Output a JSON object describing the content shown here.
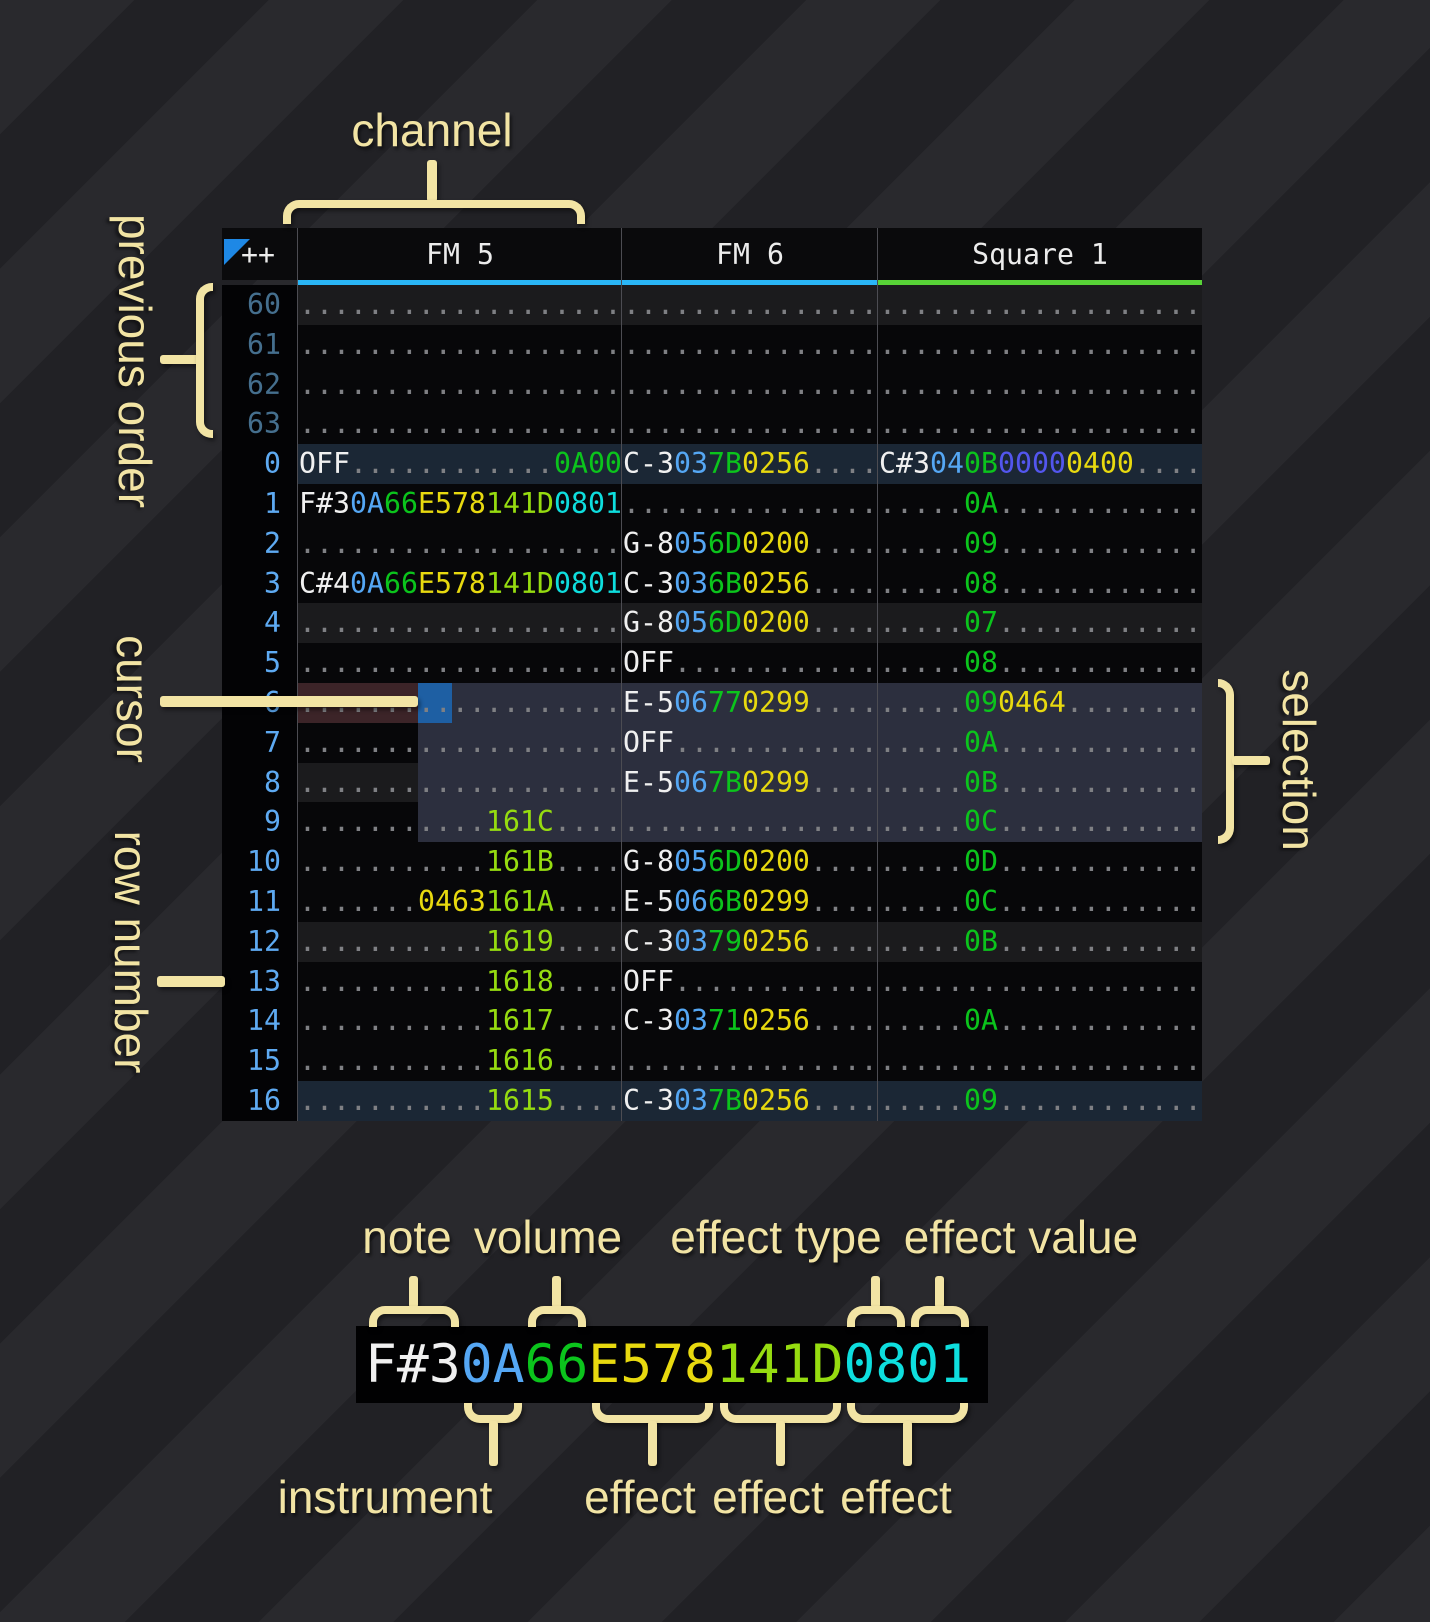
{
  "header": {
    "corner": "++",
    "channels": [
      {
        "name": "FM 5",
        "underline_color": "#2ab6f6"
      },
      {
        "name": "FM 6",
        "underline_color": "#2ab6f6"
      },
      {
        "name": "Square 1",
        "underline_color": "#58d337"
      }
    ]
  },
  "palette": {
    "nt": "#f0f0f0",
    "in": "#55a7f4",
    "vl": "#0bc41c",
    "fy": "#e8d90f",
    "f2": "#96dc10",
    "fc": "#0edede",
    "fg": "#0bc41c",
    "fi": "#5356ee",
    "dt": "#7f8084",
    "accent_cursor": "#1e5fa3",
    "accent_selection": "#2c2f3e",
    "accent_cursor_row": "#3c2428",
    "annotation": "#f2e4a4"
  },
  "annotations": {
    "channel": "channel",
    "previous_order": "previous order",
    "cursor": "cursor",
    "row_number": "row number",
    "selection": "selection",
    "note": "note",
    "volume": "volume",
    "effect_type": "effect type",
    "effect_value": "effect value",
    "instrument": "instrument",
    "effects": [
      "effect",
      "effect",
      "effect"
    ]
  },
  "example": {
    "segments": [
      [
        "F#3",
        "nt"
      ],
      [
        "0A",
        "in"
      ],
      [
        "66",
        "vl"
      ],
      [
        "E5",
        "fy"
      ],
      [
        "78",
        "fy"
      ],
      [
        "14",
        "f2"
      ],
      [
        "1D",
        "f2"
      ],
      [
        "08",
        "fc"
      ],
      [
        "01",
        "fc"
      ]
    ]
  },
  "pattern": {
    "rows": [
      {
        "num": "60",
        "prev": true,
        "hl": "h4",
        "fm5": [
          [
            "...................",
            "dt"
          ]
        ],
        "fm6": [
          [
            "...............",
            "dt"
          ]
        ],
        "sq1": [
          [
            "...................",
            "dt"
          ]
        ]
      },
      {
        "num": "61",
        "prev": true,
        "hl": "",
        "fm5": [
          [
            "...................",
            "dt"
          ]
        ],
        "fm6": [
          [
            "...............",
            "dt"
          ]
        ],
        "sq1": [
          [
            "...................",
            "dt"
          ]
        ]
      },
      {
        "num": "62",
        "prev": true,
        "hl": "",
        "fm5": [
          [
            "...................",
            "dt"
          ]
        ],
        "fm6": [
          [
            "...............",
            "dt"
          ]
        ],
        "sq1": [
          [
            "...................",
            "dt"
          ]
        ]
      },
      {
        "num": "63",
        "prev": true,
        "hl": "",
        "fm5": [
          [
            "...................",
            "dt"
          ]
        ],
        "fm6": [
          [
            "...............",
            "dt"
          ]
        ],
        "sq1": [
          [
            "...................",
            "dt"
          ]
        ]
      },
      {
        "num": "0",
        "hl": "h16",
        "fm5": [
          [
            "OFF",
            "nt"
          ],
          [
            "............",
            "dt"
          ],
          [
            "0A00",
            "fg"
          ]
        ],
        "fm6": [
          [
            "C-3",
            "nt"
          ],
          [
            "03",
            "in"
          ],
          [
            "7B",
            "vl"
          ],
          [
            "0256",
            "fy"
          ],
          [
            "....",
            "dt"
          ]
        ],
        "sq1": [
          [
            "C#3",
            "nt"
          ],
          [
            "04",
            "in"
          ],
          [
            "0B",
            "vl"
          ],
          [
            "0000",
            "fi"
          ],
          [
            "0400",
            "fy"
          ],
          [
            "....",
            "dt"
          ]
        ]
      },
      {
        "num": "1",
        "hl": "",
        "fm5": [
          [
            "F#3",
            "nt"
          ],
          [
            "0A",
            "in"
          ],
          [
            "66",
            "vl"
          ],
          [
            "E578",
            "fy"
          ],
          [
            "141D",
            "f2"
          ],
          [
            "0801",
            "fc"
          ]
        ],
        "fm6": [
          [
            "...............",
            "dt"
          ]
        ],
        "sq1": [
          [
            ".....",
            "dt"
          ],
          [
            "0A",
            "vl"
          ],
          [
            "............",
            "dt"
          ]
        ]
      },
      {
        "num": "2",
        "hl": "",
        "fm5": [
          [
            "...................",
            "dt"
          ]
        ],
        "fm6": [
          [
            "G-8",
            "nt"
          ],
          [
            "05",
            "in"
          ],
          [
            "6D",
            "vl"
          ],
          [
            "0200",
            "fy"
          ],
          [
            "....",
            "dt"
          ]
        ],
        "sq1": [
          [
            ".....",
            "dt"
          ],
          [
            "09",
            "vl"
          ],
          [
            "............",
            "dt"
          ]
        ]
      },
      {
        "num": "3",
        "hl": "",
        "fm5": [
          [
            "C#4",
            "nt"
          ],
          [
            "0A",
            "in"
          ],
          [
            "66",
            "vl"
          ],
          [
            "E578",
            "fy"
          ],
          [
            "141D",
            "f2"
          ],
          [
            "0801",
            "fc"
          ]
        ],
        "fm6": [
          [
            "C-3",
            "nt"
          ],
          [
            "03",
            "in"
          ],
          [
            "6B",
            "vl"
          ],
          [
            "0256",
            "fy"
          ],
          [
            "....",
            "dt"
          ]
        ],
        "sq1": [
          [
            ".....",
            "dt"
          ],
          [
            "08",
            "vl"
          ],
          [
            "............",
            "dt"
          ]
        ]
      },
      {
        "num": "4",
        "hl": "h4",
        "fm5": [
          [
            "...................",
            "dt"
          ]
        ],
        "fm6": [
          [
            "G-8",
            "nt"
          ],
          [
            "05",
            "in"
          ],
          [
            "6D",
            "vl"
          ],
          [
            "0200",
            "fy"
          ],
          [
            "....",
            "dt"
          ]
        ],
        "sq1": [
          [
            ".....",
            "dt"
          ],
          [
            "07",
            "vl"
          ],
          [
            "............",
            "dt"
          ]
        ]
      },
      {
        "num": "5",
        "hl": "",
        "fm5": [
          [
            "...................",
            "dt"
          ]
        ],
        "fm6": [
          [
            "OFF",
            "nt"
          ],
          [
            "............",
            "dt"
          ]
        ],
        "sq1": [
          [
            ".....",
            "dt"
          ],
          [
            "08",
            "vl"
          ],
          [
            "............",
            "dt"
          ]
        ]
      },
      {
        "num": "6",
        "hl": "",
        "fm5": [
          [
            "...................",
            "dt"
          ]
        ],
        "fm6": [
          [
            "E-5",
            "nt"
          ],
          [
            "06",
            "in"
          ],
          [
            "77",
            "vl"
          ],
          [
            "0299",
            "fy"
          ],
          [
            "....",
            "dt"
          ]
        ],
        "sq1": [
          [
            ".....",
            "dt"
          ],
          [
            "09",
            "vl"
          ],
          [
            "0464",
            "fy"
          ],
          [
            "........",
            "dt"
          ]
        ]
      },
      {
        "num": "7",
        "hl": "",
        "fm5": [
          [
            "...................",
            "dt"
          ]
        ],
        "fm6": [
          [
            "OFF",
            "nt"
          ],
          [
            "............",
            "dt"
          ]
        ],
        "sq1": [
          [
            ".....",
            "dt"
          ],
          [
            "0A",
            "vl"
          ],
          [
            "............",
            "dt"
          ]
        ]
      },
      {
        "num": "8",
        "hl": "h4",
        "fm5": [
          [
            "...................",
            "dt"
          ]
        ],
        "fm6": [
          [
            "E-5",
            "nt"
          ],
          [
            "06",
            "in"
          ],
          [
            "7B",
            "vl"
          ],
          [
            "0299",
            "fy"
          ],
          [
            "....",
            "dt"
          ]
        ],
        "sq1": [
          [
            ".....",
            "dt"
          ],
          [
            "0B",
            "vl"
          ],
          [
            "............",
            "dt"
          ]
        ]
      },
      {
        "num": "9",
        "hl": "",
        "fm5": [
          [
            "...........",
            "dt"
          ],
          [
            "161C",
            "f2"
          ],
          [
            "....",
            "dt"
          ]
        ],
        "fm6": [
          [
            "...............",
            "dt"
          ]
        ],
        "sq1": [
          [
            ".....",
            "dt"
          ],
          [
            "0C",
            "vl"
          ],
          [
            "............",
            "dt"
          ]
        ]
      },
      {
        "num": "10",
        "hl": "",
        "fm5": [
          [
            "...........",
            "dt"
          ],
          [
            "161B",
            "f2"
          ],
          [
            "....",
            "dt"
          ]
        ],
        "fm6": [
          [
            "G-8",
            "nt"
          ],
          [
            "05",
            "in"
          ],
          [
            "6D",
            "vl"
          ],
          [
            "0200",
            "fy"
          ],
          [
            "....",
            "dt"
          ]
        ],
        "sq1": [
          [
            ".....",
            "dt"
          ],
          [
            "0D",
            "vl"
          ],
          [
            "............",
            "dt"
          ]
        ]
      },
      {
        "num": "11",
        "hl": "",
        "fm5": [
          [
            ".......",
            "dt"
          ],
          [
            "0463",
            "fy"
          ],
          [
            "161A",
            "f2"
          ],
          [
            "....",
            "dt"
          ]
        ],
        "fm6": [
          [
            "E-5",
            "nt"
          ],
          [
            "06",
            "in"
          ],
          [
            "6B",
            "vl"
          ],
          [
            "0299",
            "fy"
          ],
          [
            "....",
            "dt"
          ]
        ],
        "sq1": [
          [
            ".....",
            "dt"
          ],
          [
            "0C",
            "vl"
          ],
          [
            "............",
            "dt"
          ]
        ]
      },
      {
        "num": "12",
        "hl": "h4",
        "fm5": [
          [
            "...........",
            "dt"
          ],
          [
            "1619",
            "f2"
          ],
          [
            "....",
            "dt"
          ]
        ],
        "fm6": [
          [
            "C-3",
            "nt"
          ],
          [
            "03",
            "in"
          ],
          [
            "79",
            "vl"
          ],
          [
            "0256",
            "fy"
          ],
          [
            "....",
            "dt"
          ]
        ],
        "sq1": [
          [
            ".....",
            "dt"
          ],
          [
            "0B",
            "vl"
          ],
          [
            "............",
            "dt"
          ]
        ]
      },
      {
        "num": "13",
        "hl": "",
        "fm5": [
          [
            "...........",
            "dt"
          ],
          [
            "1618",
            "f2"
          ],
          [
            "....",
            "dt"
          ]
        ],
        "fm6": [
          [
            "OFF",
            "nt"
          ],
          [
            "............",
            "dt"
          ]
        ],
        "sq1": [
          [
            "...................",
            "dt"
          ]
        ]
      },
      {
        "num": "14",
        "hl": "",
        "fm5": [
          [
            "...........",
            "dt"
          ],
          [
            "1617",
            "f2"
          ],
          [
            "....",
            "dt"
          ]
        ],
        "fm6": [
          [
            "C-3",
            "nt"
          ],
          [
            "03",
            "in"
          ],
          [
            "71",
            "vl"
          ],
          [
            "0256",
            "fy"
          ],
          [
            "....",
            "dt"
          ]
        ],
        "sq1": [
          [
            ".....",
            "dt"
          ],
          [
            "0A",
            "vl"
          ],
          [
            "............",
            "dt"
          ]
        ]
      },
      {
        "num": "15",
        "hl": "",
        "fm5": [
          [
            "...........",
            "dt"
          ],
          [
            "1616",
            "f2"
          ],
          [
            "....",
            "dt"
          ]
        ],
        "fm6": [
          [
            "...............",
            "dt"
          ]
        ],
        "sq1": [
          [
            "...................",
            "dt"
          ]
        ]
      },
      {
        "num": "16",
        "hl": "h16",
        "fm5": [
          [
            "...........",
            "dt"
          ],
          [
            "1615",
            "f2"
          ],
          [
            "....",
            "dt"
          ]
        ],
        "fm6": [
          [
            "C-3",
            "nt"
          ],
          [
            "03",
            "in"
          ],
          [
            "7B",
            "vl"
          ],
          [
            "0256",
            "fy"
          ],
          [
            "....",
            "dt"
          ]
        ],
        "sq1": [
          [
            ".....",
            "dt"
          ],
          [
            "09",
            "vl"
          ],
          [
            "............",
            "dt"
          ]
        ]
      }
    ]
  }
}
